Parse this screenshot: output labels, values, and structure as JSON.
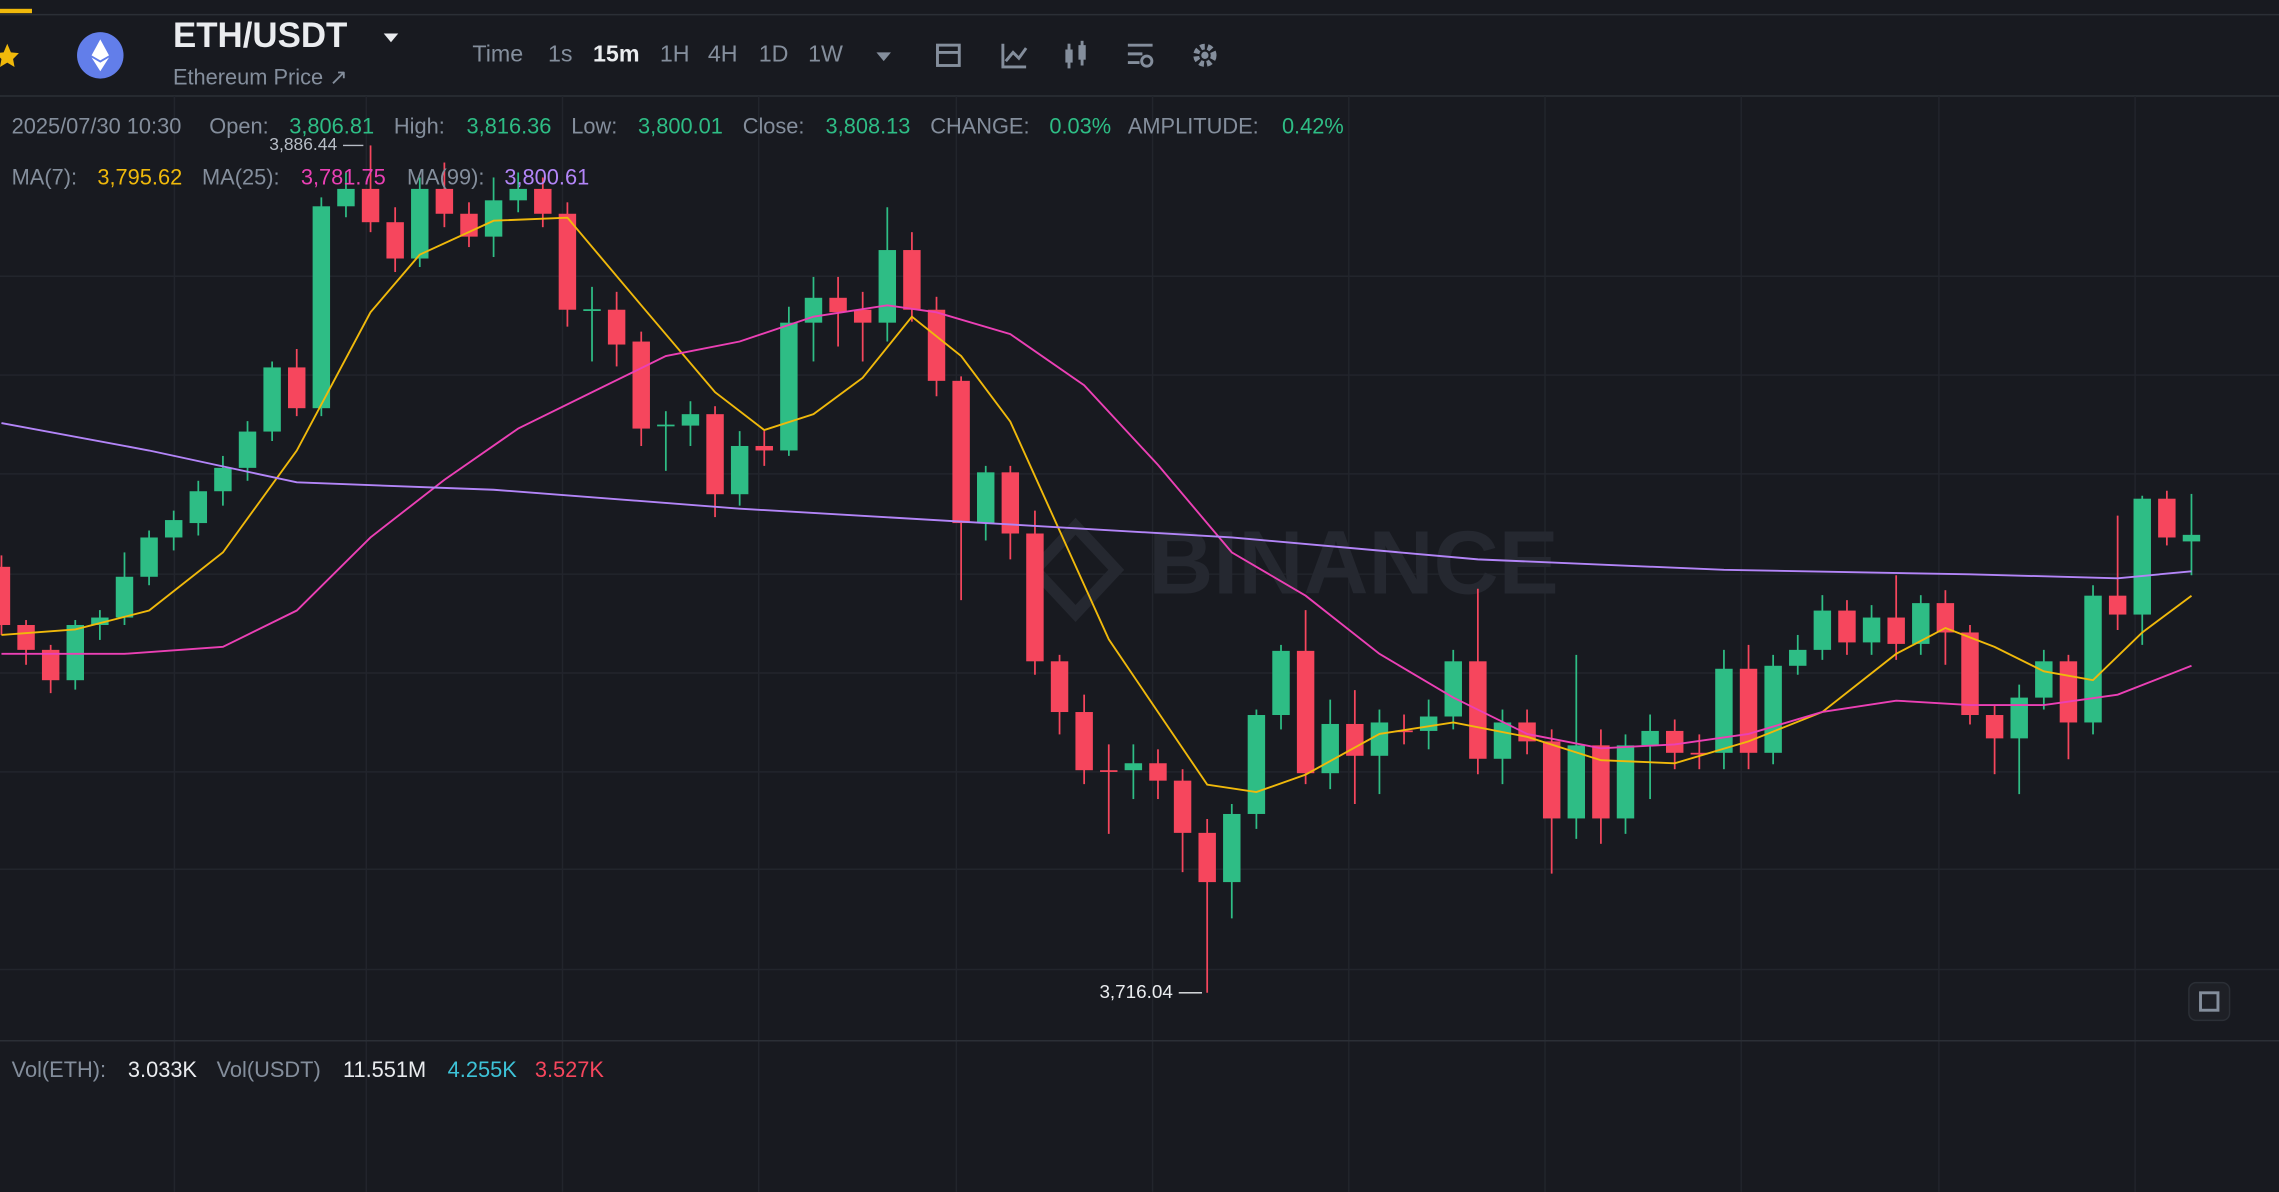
{
  "header": {
    "symbol": "ETH/USDT",
    "subtitle": "Ethereum Price ↗",
    "intervals": [
      "Time",
      "1s",
      "15m",
      "1H",
      "4H",
      "1D",
      "1W"
    ]
  },
  "info": {
    "datetime": "2025/07/30 10:30",
    "fields": [
      {
        "label": "Open:",
        "value": "3,806.81"
      },
      {
        "label": "High:",
        "value": "3,816.36"
      },
      {
        "label": "Low:",
        "value": "3,800.01"
      },
      {
        "label": "Close:",
        "value": "3,808.13"
      },
      {
        "label": "CHANGE:",
        "value": "0.03%"
      },
      {
        "label": "AMPLITUDE:",
        "value": "0.42%"
      }
    ]
  },
  "ma_legend": [
    {
      "label": "MA(7):",
      "value": "3,795.62",
      "color": "#f0b90b"
    },
    {
      "label": "MA(25):",
      "value": "3,781.75",
      "color": "#eb40b5"
    },
    {
      "label": "MA(99):",
      "value": "3,800.61",
      "color": "#b385f8"
    }
  ],
  "volume_legend": [
    {
      "text": "Vol(ETH):",
      "color": "#848e9c"
    },
    {
      "text": "3.033K",
      "color": "#eaecef"
    },
    {
      "text": "Vol(USDT)",
      "color": "#848e9c"
    },
    {
      "text": "11.551M",
      "color": "#eaecef"
    },
    {
      "text": "4.255K",
      "color": "#3dc3d8"
    },
    {
      "text": "3.527K",
      "color": "#f6465d"
    }
  ],
  "watermark": "BINANCE",
  "chart_data": {
    "type": "candlestick",
    "up_color": "#2ebd85",
    "down_color": "#f6465d",
    "high_marker": {
      "value": 3886.44,
      "label": "3,886.44"
    },
    "low_marker": {
      "value": 3716.04,
      "label": "3,716.04"
    },
    "open": [
      3801.7,
      3790.0,
      3785.0,
      3778.9,
      3790.0,
      3791.5,
      3799.7,
      3807.6,
      3810.5,
      3816.9,
      3821.6,
      3828.9,
      3841.8,
      3833.6,
      3874.2,
      3877.7,
      3871.0,
      3863.7,
      3877.7,
      3872.7,
      3868.1,
      3875.4,
      3877.7,
      3872.7,
      3853.4,
      3853.4,
      3847.0,
      3830.1,
      3830.1,
      3832.4,
      3816.3,
      3826.0,
      3825.1,
      3850.8,
      3855.8,
      3853.4,
      3850.8,
      3865.4,
      3853.4,
      3839.1,
      3810.5,
      3820.7,
      3808.4,
      3782.7,
      3772.5,
      3760.8,
      3760.8,
      3762.2,
      3758.7,
      3748.2,
      3738.3,
      3752.0,
      3771.9,
      3784.8,
      3760.2,
      3770.1,
      3763.7,
      3768.8,
      3768.7,
      3771.6,
      3782.7,
      3763.1,
      3770.4,
      3766.6,
      3751.1,
      3765.8,
      3751.1,
      3765.8,
      3768.7,
      3764.3,
      3764.3,
      3781.2,
      3764.3,
      3781.8,
      3785.0,
      3792.9,
      3786.5,
      3791.5,
      3786.2,
      3794.4,
      3788.5,
      3771.9,
      3767.2,
      3775.4,
      3782.7,
      3770.4,
      3795.9,
      3792.1,
      3815.4,
      3806.81
    ],
    "high": [
      3804,
      3791,
      3786,
      3791,
      3793,
      3804.6,
      3809,
      3813,
      3819,
      3824,
      3831,
      3843,
      3845.5,
      3876,
      3881,
      3886.44,
      3874,
      3880,
      3883,
      3875,
      3880,
      3881,
      3880,
      3875,
      3858,
      3857,
      3849,
      3833,
      3835,
      3834,
      3829,
      3829,
      3854,
      3860,
      3860,
      3857,
      3874,
      3869,
      3856,
      3840,
      3822,
      3822,
      3813,
      3784,
      3776,
      3766,
      3766,
      3765,
      3761,
      3751,
      3754,
      3773,
      3786,
      3793,
      3775,
      3776.9,
      3773,
      3772,
      3775,
      3785,
      3797.3,
      3773,
      3773,
      3769,
      3784,
      3769,
      3768,
      3772,
      3771,
      3768,
      3785,
      3786,
      3784,
      3788,
      3796,
      3795,
      3794,
      3800,
      3796,
      3797,
      3790,
      3774,
      3778,
      3785,
      3784,
      3798,
      3812,
      3816,
      3817,
      3816.36
    ],
    "low": [
      3788,
      3782,
      3776.3,
      3777,
      3787,
      3790,
      3798,
      3805,
      3808,
      3814,
      3819,
      3827,
      3832,
      3832,
      3872,
      3869,
      3861,
      3862,
      3870,
      3866,
      3864,
      3873,
      3870,
      3850,
      3843,
      3842,
      3826,
      3821,
      3826,
      3811.7,
      3814,
      3822,
      3824,
      3843,
      3846,
      3843,
      3847,
      3851,
      3836,
      3795,
      3807,
      3803.2,
      3780,
      3768,
      3758,
      3748,
      3755,
      3755,
      3740.3,
      3716.04,
      3731,
      3749,
      3769,
      3758,
      3757,
      3754,
      3756,
      3766,
      3765,
      3769,
      3760,
      3758,
      3764,
      3740,
      3747,
      3746,
      3748,
      3755,
      3761,
      3761,
      3761,
      3761,
      3762,
      3780,
      3783,
      3784,
      3784,
      3783,
      3784,
      3782,
      3770,
      3760,
      3756,
      3773,
      3763,
      3768,
      3789,
      3786,
      3806,
      3800.01
    ],
    "close": [
      3790.0,
      3785.0,
      3778.9,
      3790.0,
      3791.5,
      3799.7,
      3807.6,
      3811.1,
      3816.9,
      3821.6,
      3828.9,
      3841.8,
      3833.6,
      3874.2,
      3877.7,
      3871.0,
      3863.7,
      3877.7,
      3872.7,
      3868.1,
      3875.4,
      3877.7,
      3872.7,
      3853.4,
      3853.5,
      3846.4,
      3829.5,
      3830.3,
      3832.4,
      3816.3,
      3826.0,
      3825.1,
      3850.8,
      3855.8,
      3852.9,
      3850.8,
      3865.4,
      3853.4,
      3839.1,
      3810.5,
      3820.7,
      3808.4,
      3782.7,
      3772.5,
      3760.8,
      3760.6,
      3762.2,
      3758.7,
      3748.2,
      3738.3,
      3752.0,
      3771.9,
      3784.8,
      3760.2,
      3770.1,
      3763.7,
      3770.4,
      3768.7,
      3771.6,
      3782.7,
      3763.1,
      3770.4,
      3766.6,
      3751.1,
      3765.8,
      3751.1,
      3765.8,
      3768.7,
      3764.3,
      3764.2,
      3781.2,
      3764.3,
      3781.8,
      3785.0,
      3792.9,
      3786.5,
      3791.5,
      3786.2,
      3794.4,
      3788.5,
      3771.9,
      3767.2,
      3775.4,
      3782.7,
      3770.4,
      3795.9,
      3792.1,
      3815.4,
      3807.6,
      3808.13
    ],
    "lines": [
      {
        "color": "#f0b90b",
        "x": [
          0,
          3,
          6,
          9,
          12,
          15,
          17,
          20,
          23,
          26,
          29,
          31,
          33,
          35,
          37,
          39,
          41,
          43,
          45,
          47,
          49,
          51,
          53,
          56,
          59,
          62,
          65,
          68,
          71,
          74,
          77,
          79,
          81,
          83,
          85,
          87,
          89
        ],
        "values": [
          3788.0,
          3789.1,
          3792.9,
          3804.6,
          3825.1,
          3852.9,
          3864.5,
          3871.3,
          3871.9,
          3854.3,
          3836.8,
          3829.2,
          3832.4,
          3839.7,
          3852.0,
          3844.1,
          3830.9,
          3809.0,
          3787.1,
          3772.5,
          3757.9,
          3756.4,
          3759.9,
          3768.1,
          3770.4,
          3767.5,
          3762.8,
          3762.2,
          3766.6,
          3772.5,
          3784.2,
          3789.4,
          3785.6,
          3780.7,
          3778.9,
          3788.5,
          3795.9
        ]
      },
      {
        "color": "#eb40b5",
        "x": [
          0,
          5,
          9,
          12,
          15,
          18,
          21,
          24,
          27,
          30,
          33,
          36,
          38,
          41,
          44,
          47,
          50,
          53,
          56,
          59,
          62,
          65,
          68,
          71,
          74,
          77,
          80,
          83,
          86,
          89
        ],
        "values": [
          3784.2,
          3784.2,
          3785.6,
          3792.9,
          3807.6,
          3819.2,
          3829.5,
          3836.8,
          3844.1,
          3847.0,
          3852.0,
          3854.3,
          3852.9,
          3848.5,
          3838.2,
          3822.2,
          3804.6,
          3795.9,
          3784.2,
          3775.4,
          3768.1,
          3765.2,
          3766.0,
          3768.1,
          3772.5,
          3774.8,
          3773.9,
          3773.9,
          3776.0,
          3781.8
        ]
      },
      {
        "color": "#b385f8",
        "x": [
          0,
          6,
          12,
          20,
          30,
          40,
          50,
          60,
          70,
          80,
          86,
          89
        ],
        "values": [
          3830.6,
          3825.1,
          3818.7,
          3817.2,
          3813.4,
          3810.5,
          3807.6,
          3803.2,
          3801.1,
          3800.2,
          3799.4,
          3800.8
        ]
      }
    ]
  }
}
